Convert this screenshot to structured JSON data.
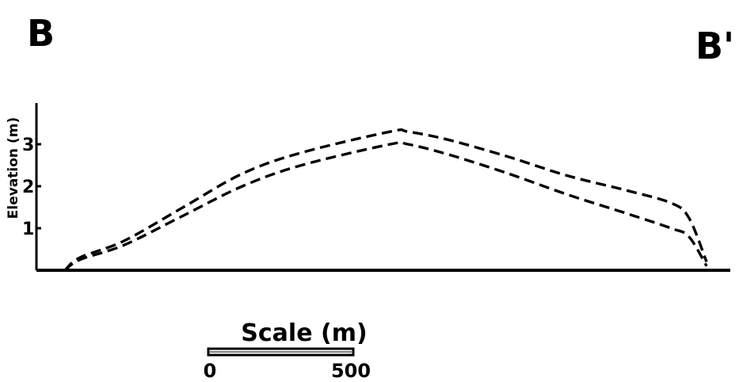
{
  "chart_data": {
    "type": "line",
    "title": "",
    "start_label": "B",
    "end_label": "B'",
    "xlabel": "",
    "ylabel": "Elevation (m)",
    "y_ticks": [
      "1",
      "2",
      "3"
    ],
    "y_tick_values": [
      1,
      2,
      3
    ],
    "ylim": [
      0,
      3.7
    ],
    "xlim": [
      0,
      2250
    ],
    "grid": false,
    "series": [
      {
        "name": "",
        "style": "dashed",
        "x": [
          0,
          50,
          200,
          400,
          600,
          800,
          1100,
          1160,
          1300,
          1500,
          1700,
          1900,
          2050,
          2110,
          2170
        ],
        "y": [
          0,
          0.3,
          0.7,
          1.5,
          2.3,
          2.8,
          3.3,
          3.3,
          3.1,
          2.7,
          2.25,
          1.9,
          1.6,
          1.25,
          0.2
        ]
      },
      {
        "name": "",
        "style": "dashed",
        "x": [
          0,
          50,
          200,
          400,
          600,
          800,
          1100,
          1160,
          1300,
          1500,
          1700,
          1900,
          2050,
          2110,
          2170
        ],
        "y": [
          0,
          0.25,
          0.6,
          1.3,
          2.0,
          2.5,
          3.0,
          3.0,
          2.75,
          2.3,
          1.8,
          1.35,
          1.0,
          0.8,
          0.1
        ]
      }
    ],
    "scale_bar": {
      "title": "Scale (m)",
      "labels": [
        "0",
        "500"
      ],
      "length_m": 500
    }
  }
}
